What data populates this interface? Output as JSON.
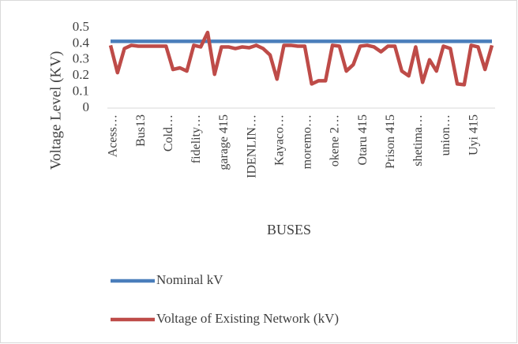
{
  "chart_data": {
    "type": "line",
    "y_label": "Voltage Level (KV)",
    "x_label": "BUSES",
    "categories": [
      "Acess…",
      null,
      null,
      null,
      "Bus13",
      null,
      null,
      null,
      "Cold…",
      null,
      null,
      null,
      "fidelity…",
      null,
      null,
      null,
      "garage 415",
      null,
      null,
      null,
      "IDENLIN…",
      null,
      null,
      null,
      "Kayaco…",
      null,
      null,
      null,
      "moremo…",
      null,
      null,
      null,
      "okene 2…",
      null,
      null,
      null,
      "Otaru 415",
      null,
      null,
      null,
      "Prison 415",
      null,
      null,
      null,
      "shetima…",
      null,
      null,
      null,
      "union…",
      null,
      null,
      null,
      "Uyi 415",
      null,
      null,
      null
    ],
    "series": [
      {
        "name": "Nominal kV",
        "color": "#4a7ebb",
        "values": [
          0.415,
          0.415,
          0.415,
          0.415,
          0.415,
          0.415,
          0.415,
          0.415,
          0.415,
          0.415,
          0.415,
          0.415,
          0.415,
          0.415,
          0.415,
          0.415,
          0.415,
          0.415,
          0.415,
          0.415,
          0.415,
          0.415,
          0.415,
          0.415,
          0.415,
          0.415,
          0.415,
          0.415,
          0.415,
          0.415,
          0.415,
          0.415,
          0.415,
          0.415,
          0.415,
          0.415,
          0.415,
          0.415,
          0.415,
          0.415,
          0.415,
          0.415,
          0.415,
          0.415,
          0.415,
          0.415,
          0.415,
          0.415,
          0.415,
          0.415,
          0.415,
          0.415,
          0.415,
          0.415,
          0.415,
          0.415
        ]
      },
      {
        "name": "Voltage of Existing Network (kV)",
        "color": "#be4b48",
        "values": [
          0.39,
          0.22,
          0.37,
          0.39,
          0.385,
          0.385,
          0.385,
          0.385,
          0.385,
          0.24,
          0.25,
          0.23,
          0.39,
          0.38,
          0.47,
          0.21,
          0.38,
          0.38,
          0.37,
          0.38,
          0.375,
          0.39,
          0.37,
          0.33,
          0.18,
          0.39,
          0.39,
          0.385,
          0.385,
          0.15,
          0.17,
          0.17,
          0.39,
          0.385,
          0.23,
          0.27,
          0.385,
          0.39,
          0.38,
          0.35,
          0.385,
          0.385,
          0.23,
          0.2,
          0.38,
          0.16,
          0.3,
          0.23,
          0.385,
          0.37,
          0.15,
          0.145,
          0.39,
          0.38,
          0.24,
          0.39
        ]
      }
    ],
    "ylim": [
      0,
      0.5
    ],
    "yticks": [
      0,
      0.1,
      0.2,
      0.3,
      0.4,
      0.5
    ],
    "grid": false
  }
}
